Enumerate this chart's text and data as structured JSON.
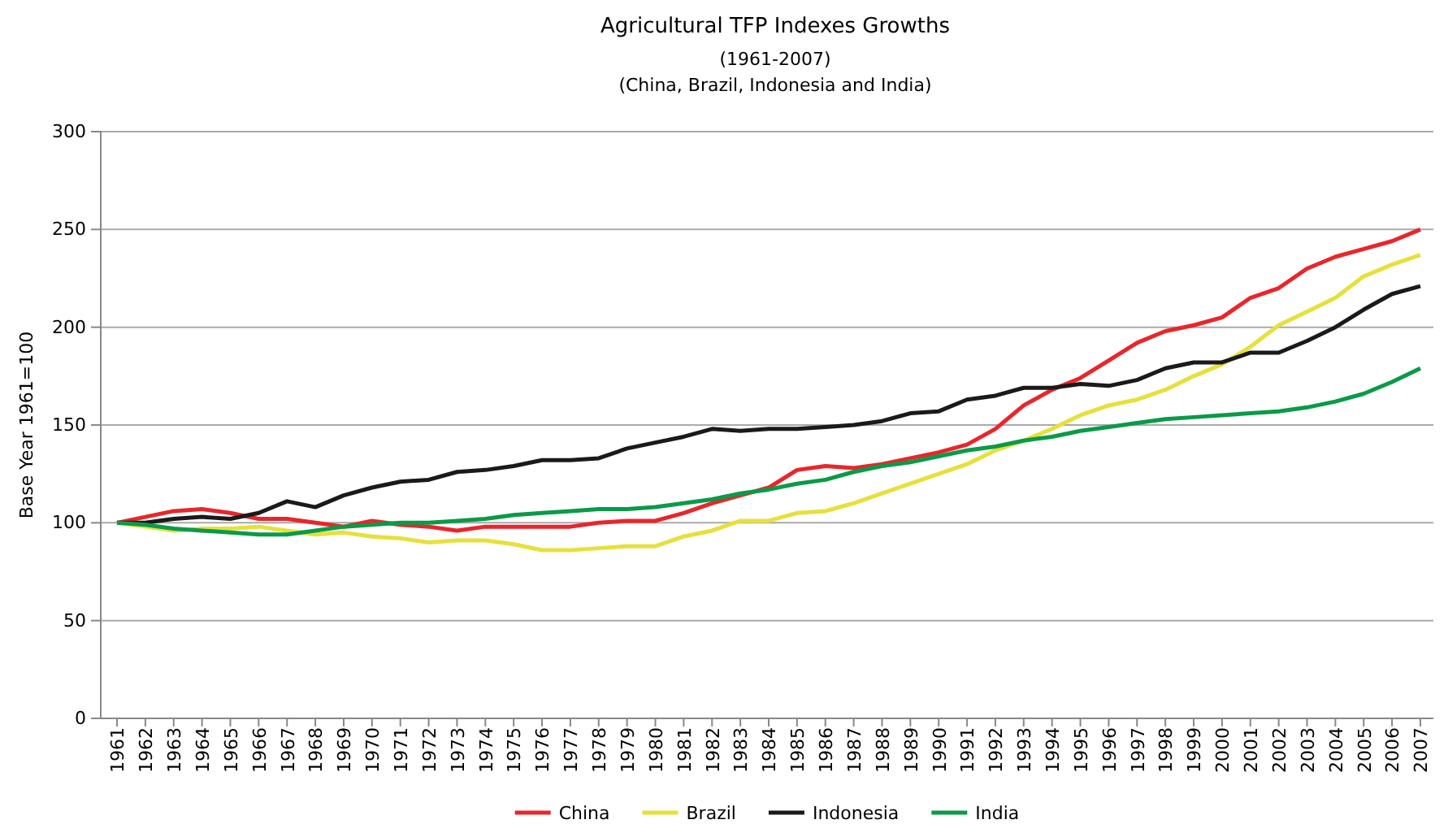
{
  "chart_data": {
    "type": "line",
    "title": "Agricultural TFP Indexes Growths",
    "subtitle": "(1961-2007)\n(China, Brazil, Indonesia and India)",
    "ylabel": "Base Year 1961=100",
    "categories": [
      "1961",
      "1962",
      "1963",
      "1964",
      "1965",
      "1966",
      "1967",
      "1968",
      "1969",
      "1970",
      "1971",
      "1972",
      "1973",
      "1974",
      "1975",
      "1976",
      "1977",
      "1978",
      "1979",
      "1980",
      "1981",
      "1982",
      "1983",
      "1984",
      "1985",
      "1986",
      "1987",
      "1988",
      "1989",
      "1990",
      "1991",
      "1992",
      "1993",
      "1994",
      "1995",
      "1996",
      "1997",
      "1998",
      "1999",
      "2000",
      "2001",
      "2002",
      "2003",
      "2004",
      "2005",
      "2006",
      "2007"
    ],
    "series": [
      {
        "name": "China",
        "color": "#e8262b",
        "values": [
          100,
          103,
          106,
          107,
          105,
          102,
          102,
          100,
          98,
          101,
          99,
          98,
          96,
          98,
          98,
          98,
          98,
          100,
          101,
          101,
          105,
          110,
          114,
          118,
          127,
          129,
          128,
          130,
          133,
          136,
          140,
          148,
          160,
          168,
          174,
          183,
          192,
          198,
          201,
          205,
          215,
          220,
          230,
          236,
          240,
          244,
          250
        ]
      },
      {
        "name": "Brazil",
        "color": "#e6e03c",
        "values": [
          100,
          98,
          96,
          97,
          97,
          98,
          96,
          94,
          95,
          93,
          92,
          90,
          91,
          91,
          89,
          86,
          86,
          87,
          88,
          88,
          93,
          96,
          101,
          101,
          105,
          106,
          110,
          115,
          120,
          125,
          130,
          137,
          142,
          148,
          155,
          160,
          163,
          168,
          175,
          181,
          190,
          201,
          208,
          215,
          226,
          232,
          237
        ]
      },
      {
        "name": "Indonesia",
        "color": "#1a1a1a",
        "values": [
          100,
          100,
          102,
          103,
          102,
          105,
          111,
          108,
          114,
          118,
          121,
          122,
          126,
          127,
          129,
          132,
          132,
          133,
          138,
          141,
          144,
          148,
          147,
          148,
          148,
          149,
          150,
          152,
          156,
          157,
          163,
          165,
          169,
          169,
          171,
          170,
          173,
          179,
          182,
          182,
          187,
          187,
          193,
          200,
          209,
          217,
          221
        ]
      },
      {
        "name": "India",
        "color": "#0a9a48",
        "values": [
          100,
          99,
          97,
          96,
          95,
          94,
          94,
          96,
          98,
          99,
          100,
          100,
          101,
          102,
          104,
          105,
          106,
          107,
          107,
          108,
          110,
          112,
          115,
          117,
          120,
          122,
          126,
          129,
          131,
          134,
          137,
          139,
          142,
          144,
          147,
          149,
          151,
          153,
          154,
          155,
          156,
          157,
          159,
          162,
          166,
          172,
          179
        ]
      }
    ],
    "ylim": [
      0,
      300
    ],
    "yticks": [
      0,
      50,
      100,
      150,
      200,
      250,
      300
    ],
    "grid": "y",
    "legend": "bottom",
    "line_style": "solid",
    "marker": "none"
  }
}
